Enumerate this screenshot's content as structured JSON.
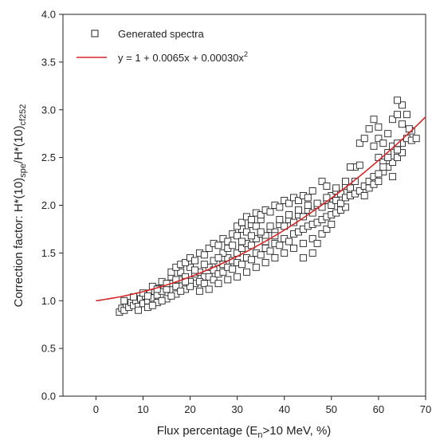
{
  "chart_data": {
    "type": "scatter",
    "xlabel": {
      "main": "Flux percentage (E",
      "sub": "n",
      "rest": ">10 MeV, %)"
    },
    "ylabel": {
      "p1": "Correction factor: H*(10)",
      "sub1": "spe",
      "p2": "/H*(10)",
      "sub2": "cf252"
    },
    "xlim": [
      -7,
      70
    ],
    "ylim": [
      0,
      4.0
    ],
    "xticks": [
      0,
      10,
      20,
      30,
      40,
      50,
      60,
      70
    ],
    "yticks": [
      "0.0",
      "0.5",
      "1.0",
      "1.5",
      "2.0",
      "2.5",
      "3.0",
      "3.5",
      "4.0"
    ],
    "grid": false,
    "legend": {
      "placement": "top-left",
      "scatter_label": "Generated spectra",
      "fit_label": "y = 1 + 0.0065x + 0.00030x",
      "fit_label_sup": "2"
    },
    "fit": {
      "a": 1,
      "b": 0.0065,
      "c": 0.0003,
      "x_range": [
        0,
        70
      ],
      "color": "#d62728"
    },
    "series": [
      {
        "name": "Generated spectra",
        "marker": "open-square",
        "points": [
          [
            5,
            0.88
          ],
          [
            5.5,
            0.92
          ],
          [
            6,
            0.9
          ],
          [
            6.5,
            0.96
          ],
          [
            7,
            0.93
          ],
          [
            7.5,
            0.98
          ],
          [
            8,
            0.95
          ],
          [
            8.5,
            1.0
          ],
          [
            9,
            0.94
          ],
          [
            9.5,
            1.02
          ],
          [
            10,
            0.97
          ],
          [
            10.5,
            1.05
          ],
          [
            11,
            1.0
          ],
          [
            11.5,
            1.08
          ],
          [
            12,
            1.03
          ],
          [
            12.5,
            1.1
          ],
          [
            13,
            1.06
          ],
          [
            13.5,
            1.13
          ],
          [
            14,
            1.1
          ],
          [
            14.5,
            1.16
          ],
          [
            6,
            1.0
          ],
          [
            8,
            1.04
          ],
          [
            10,
            1.08
          ],
          [
            12,
            1.15
          ],
          [
            14,
            1.2
          ],
          [
            16,
            1.25
          ],
          [
            18,
            1.3
          ],
          [
            20,
            1.35
          ],
          [
            9,
            0.9
          ],
          [
            11,
            0.93
          ],
          [
            13,
            0.98
          ],
          [
            15,
            1.02
          ],
          [
            17,
            1.07
          ],
          [
            19,
            1.12
          ],
          [
            21,
            1.18
          ],
          [
            15,
            1.12
          ],
          [
            16,
            1.18
          ],
          [
            17,
            1.15
          ],
          [
            18,
            1.22
          ],
          [
            19,
            1.25
          ],
          [
            20,
            1.2
          ],
          [
            21,
            1.28
          ],
          [
            22,
            1.3
          ],
          [
            23,
            1.25
          ],
          [
            24,
            1.35
          ],
          [
            25,
            1.32
          ],
          [
            26,
            1.4
          ],
          [
            27,
            1.38
          ],
          [
            28,
            1.45
          ],
          [
            29,
            1.42
          ],
          [
            16,
            1.3
          ],
          [
            17,
            1.35
          ],
          [
            18,
            1.38
          ],
          [
            19,
            1.4
          ],
          [
            20,
            1.45
          ],
          [
            21,
            1.42
          ],
          [
            22,
            1.5
          ],
          [
            23,
            1.48
          ],
          [
            24,
            1.55
          ],
          [
            25,
            1.6
          ],
          [
            26,
            1.58
          ],
          [
            27,
            1.65
          ],
          [
            28,
            1.62
          ],
          [
            29,
            1.7
          ],
          [
            30,
            1.68
          ],
          [
            31,
            1.75
          ],
          [
            32,
            1.72
          ],
          [
            33,
            1.8
          ],
          [
            34,
            1.78
          ],
          [
            35,
            1.85
          ],
          [
            22,
            1.2
          ],
          [
            23,
            1.18
          ],
          [
            24,
            1.25
          ],
          [
            25,
            1.22
          ],
          [
            26,
            1.28
          ],
          [
            27,
            1.3
          ],
          [
            28,
            1.35
          ],
          [
            29,
            1.33
          ],
          [
            30,
            1.4
          ],
          [
            31,
            1.38
          ],
          [
            32,
            1.45
          ],
          [
            33,
            1.43
          ],
          [
            34,
            1.5
          ],
          [
            35,
            1.48
          ],
          [
            36,
            1.55
          ],
          [
            37,
            1.52
          ],
          [
            38,
            1.6
          ],
          [
            39,
            1.58
          ],
          [
            40,
            1.65
          ],
          [
            41,
            1.62
          ],
          [
            30,
            1.5
          ],
          [
            31,
            1.55
          ],
          [
            32,
            1.6
          ],
          [
            33,
            1.58
          ],
          [
            34,
            1.65
          ],
          [
            35,
            1.7
          ],
          [
            36,
            1.68
          ],
          [
            37,
            1.75
          ],
          [
            38,
            1.72
          ],
          [
            39,
            1.8
          ],
          [
            40,
            1.78
          ],
          [
            41,
            1.85
          ],
          [
            42,
            1.82
          ],
          [
            43,
            1.9
          ],
          [
            44,
            1.88
          ],
          [
            45,
            1.95
          ],
          [
            46,
            1.92
          ],
          [
            47,
            2.0
          ],
          [
            48,
            1.98
          ],
          [
            49,
            2.05
          ],
          [
            30,
            1.78
          ],
          [
            31,
            1.82
          ],
          [
            32,
            1.88
          ],
          [
            33,
            1.85
          ],
          [
            34,
            1.92
          ],
          [
            35,
            1.9
          ],
          [
            36,
            1.95
          ],
          [
            37,
            1.93
          ],
          [
            38,
            2.0
          ],
          [
            39,
            1.98
          ],
          [
            40,
            2.05
          ],
          [
            41,
            2.02
          ],
          [
            42,
            2.08
          ],
          [
            43,
            2.05
          ],
          [
            44,
            2.1
          ],
          [
            45,
            2.08
          ],
          [
            42,
            1.7
          ],
          [
            43,
            1.72
          ],
          [
            44,
            1.75
          ],
          [
            45,
            1.78
          ],
          [
            46,
            1.8
          ],
          [
            47,
            1.82
          ],
          [
            48,
            1.85
          ],
          [
            49,
            1.88
          ],
          [
            50,
            1.9
          ],
          [
            51,
            1.92
          ],
          [
            52,
            1.95
          ],
          [
            53,
            1.98
          ],
          [
            50,
            2.1
          ],
          [
            51,
            2.15
          ],
          [
            52,
            2.12
          ],
          [
            53,
            2.2
          ],
          [
            54,
            2.18
          ],
          [
            55,
            2.25
          ],
          [
            50,
            2.0
          ],
          [
            51,
            2.05
          ],
          [
            52,
            2.02
          ],
          [
            53,
            2.08
          ],
          [
            54,
            2.1
          ],
          [
            55,
            2.12
          ],
          [
            56,
            2.15
          ],
          [
            57,
            2.2
          ],
          [
            58,
            2.25
          ],
          [
            59,
            2.3
          ],
          [
            55,
            2.4
          ],
          [
            56,
            2.42
          ],
          [
            54,
            2.4
          ],
          [
            48,
            2.25
          ],
          [
            49,
            2.2
          ],
          [
            46,
            2.15
          ],
          [
            57,
            2.1
          ],
          [
            58,
            2.18
          ],
          [
            59,
            2.22
          ],
          [
            60,
            2.25
          ],
          [
            61,
            2.35
          ],
          [
            62,
            2.4
          ],
          [
            63,
            2.45
          ],
          [
            64,
            2.5
          ],
          [
            65,
            2.55
          ],
          [
            60,
            2.5
          ],
          [
            61,
            2.45
          ],
          [
            62,
            2.55
          ],
          [
            63,
            2.62
          ],
          [
            64,
            2.58
          ],
          [
            65,
            2.65
          ],
          [
            66,
            2.7
          ],
          [
            67,
            2.78
          ],
          [
            59,
            2.62
          ],
          [
            60,
            2.7
          ],
          [
            61,
            2.65
          ],
          [
            62,
            2.75
          ],
          [
            63,
            2.9
          ],
          [
            64,
            2.95
          ],
          [
            65,
            3.05
          ],
          [
            66,
            2.95
          ],
          [
            66.5,
            2.8
          ],
          [
            67,
            2.68
          ],
          [
            68,
            2.7
          ],
          [
            58,
            2.8
          ],
          [
            59,
            2.9
          ],
          [
            60,
            2.82
          ],
          [
            62,
            2.5
          ],
          [
            63,
            2.3
          ],
          [
            64,
            2.65
          ],
          [
            56,
            2.65
          ],
          [
            57,
            2.7
          ],
          [
            60,
            2.33
          ],
          [
            61,
            2.4
          ],
          [
            64,
            3.1
          ],
          [
            65,
            2.85
          ],
          [
            34,
            1.35
          ],
          [
            36,
            1.4
          ],
          [
            38,
            1.45
          ],
          [
            40,
            1.5
          ],
          [
            42,
            1.55
          ],
          [
            44,
            1.6
          ],
          [
            46,
            1.65
          ],
          [
            48,
            1.7
          ],
          [
            12,
            0.95
          ],
          [
            14,
            1.0
          ],
          [
            16,
            1.05
          ],
          [
            18,
            1.1
          ],
          [
            20,
            1.15
          ],
          [
            22,
            1.1
          ],
          [
            24,
            1.12
          ],
          [
            26,
            1.18
          ],
          [
            28,
            1.22
          ],
          [
            30,
            1.25
          ],
          [
            32,
            1.3
          ],
          [
            27,
            1.5
          ],
          [
            28,
            1.55
          ],
          [
            29,
            1.58
          ],
          [
            31,
            1.62
          ],
          [
            33,
            1.68
          ],
          [
            35,
            1.72
          ],
          [
            37,
            1.78
          ],
          [
            39,
            1.85
          ],
          [
            41,
            1.9
          ],
          [
            43,
            1.95
          ],
          [
            45,
            2.0
          ],
          [
            47,
            2.02
          ],
          [
            49,
            2.08
          ],
          [
            51,
            2.18
          ],
          [
            53,
            2.25
          ],
          [
            36,
            1.62
          ],
          [
            38,
            1.68
          ],
          [
            25,
            1.42
          ],
          [
            26,
            1.45
          ],
          [
            23,
            1.38
          ],
          [
            21,
            1.32
          ],
          [
            19,
            1.2
          ],
          [
            17,
            1.22
          ],
          [
            15,
            1.18
          ],
          [
            13,
            1.12
          ],
          [
            11,
            1.05
          ],
          [
            44,
            1.45
          ],
          [
            46,
            1.5
          ],
          [
            47,
            1.6
          ],
          [
            49,
            1.75
          ],
          [
            50,
            1.8
          ]
        ]
      }
    ]
  }
}
